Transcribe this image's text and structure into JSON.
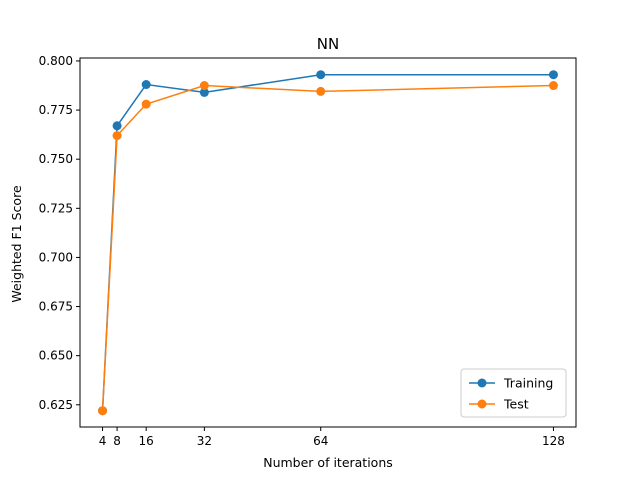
{
  "chart_data": {
    "type": "line",
    "title": "NN",
    "xlabel": "Number of iterations",
    "ylabel": "Weighted F1 Score",
    "x": [
      4,
      8,
      16,
      32,
      64,
      128
    ],
    "xticks": [
      4,
      8,
      16,
      32,
      64,
      128
    ],
    "xlim": [
      -2.2,
      134.2
    ],
    "yticks": [
      0.625,
      0.65,
      0.675,
      0.7,
      0.725,
      0.75,
      0.775,
      0.8
    ],
    "ytick_labels": [
      "0.625",
      "0.650",
      "0.675",
      "0.700",
      "0.725",
      "0.750",
      "0.775",
      "0.800"
    ],
    "ylim": [
      0.6137,
      0.8015
    ],
    "grid": false,
    "legend_position": "lower-right",
    "series": [
      {
        "name": "Training",
        "color": "#1f77b4",
        "values": [
          0.622,
          0.767,
          0.788,
          0.784,
          0.793,
          0.793
        ]
      },
      {
        "name": "Test",
        "color": "#ff7f0e",
        "values": [
          0.622,
          0.762,
          0.778,
          0.7875,
          0.7845,
          0.7875
        ]
      }
    ]
  }
}
